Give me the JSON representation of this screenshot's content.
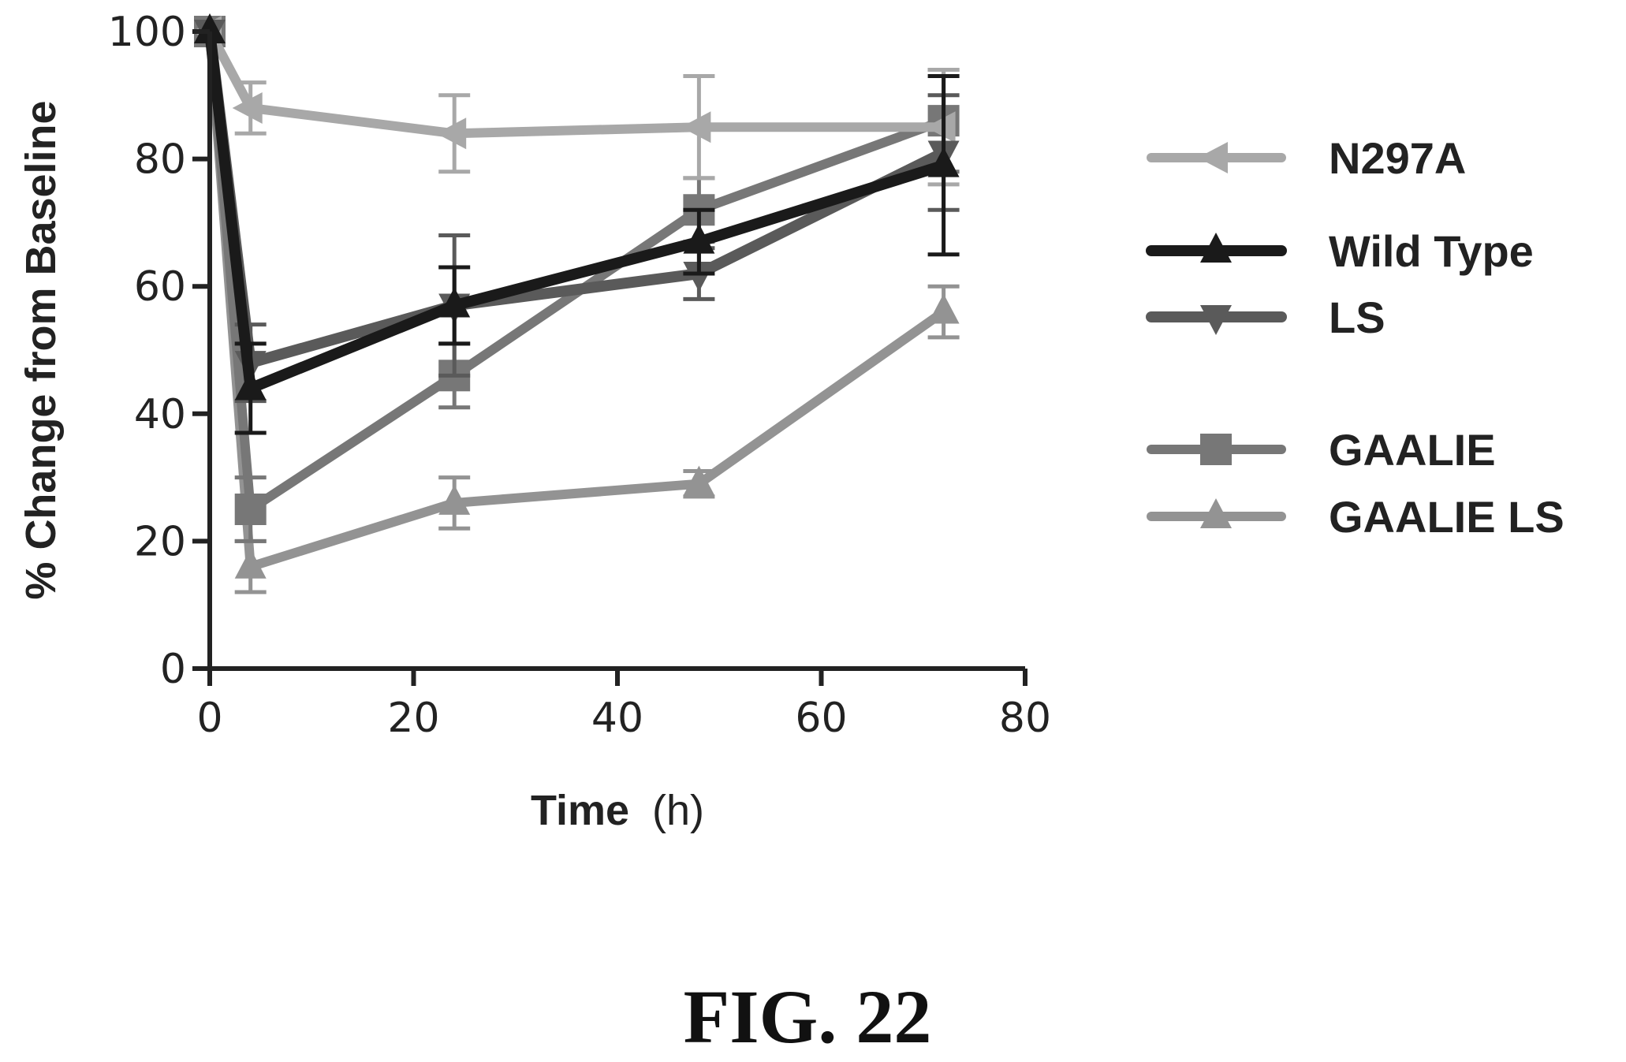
{
  "chart_data": {
    "type": "line",
    "xlabel_bold": "Time",
    "xlabel_unit": "(h)",
    "ylabel": "% Change from Baseline",
    "xlim": [
      0,
      80
    ],
    "ylim": [
      0,
      100
    ],
    "xticks": [
      "0",
      "20",
      "40",
      "60",
      "80"
    ],
    "yticks": [
      "0",
      "20",
      "40",
      "60",
      "80",
      "100"
    ],
    "legend_position": "right",
    "grid": false,
    "x": [
      0,
      4,
      24,
      48,
      72
    ],
    "series": [
      {
        "name": "N297A",
        "marker": "left-triangle",
        "color": "#a8a8a8",
        "width": 12,
        "values": [
          100,
          88,
          84,
          85,
          85
        ],
        "errors": [
          0,
          4,
          6,
          8,
          9
        ]
      },
      {
        "name": "Wild Type",
        "marker": "up-triangle",
        "color": "#1a1a1a",
        "width": 14,
        "values": [
          100,
          44,
          57,
          67,
          79
        ],
        "errors": [
          0,
          7,
          6,
          5,
          14
        ]
      },
      {
        "name": "LS",
        "marker": "down-triangle",
        "color": "#5a5a5a",
        "width": 14,
        "values": [
          100,
          48,
          57,
          62,
          81
        ],
        "errors": [
          0,
          6,
          11,
          4,
          9
        ]
      },
      {
        "name": "GAALIE",
        "marker": "square",
        "color": "#777777",
        "width": 12,
        "values": [
          100,
          25,
          46,
          72,
          86
        ],
        "errors": [
          0,
          5,
          5,
          5,
          8
        ]
      },
      {
        "name": "GAALIE LS",
        "marker": "up-triangle",
        "color": "#939393",
        "width": 12,
        "values": [
          100,
          16,
          26,
          29,
          56
        ],
        "errors": [
          0,
          4,
          4,
          2,
          4
        ]
      }
    ]
  },
  "caption": "FIG. 22"
}
